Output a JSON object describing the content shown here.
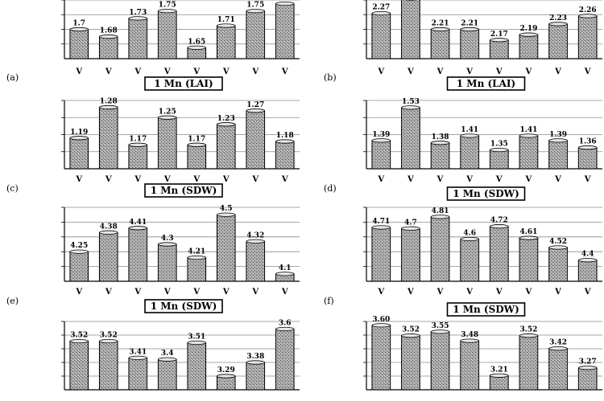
{
  "figure": {
    "bar_colors": {
      "fill": "#9a9a9a",
      "stroke": "#000000",
      "highlight": "#e6e6e6"
    },
    "title_box": {
      "border": "#000000",
      "background": "#ffffff"
    }
  },
  "chart_data": [
    {
      "panel_label": "(a)",
      "type": "bar",
      "title": "",
      "categories": [
        "V",
        "V",
        "V",
        "V",
        "V",
        "V",
        "V",
        "V"
      ],
      "values": [
        1.7,
        1.68,
        1.73,
        1.75,
        1.65,
        1.71,
        1.75,
        1.77
      ],
      "value_labels": [
        "1.7",
        "1.68",
        "1.73",
        "1.75",
        "1.65",
        "1.71",
        "1.75",
        ""
      ],
      "ylim": [
        1.62,
        1.78
      ]
    },
    {
      "panel_label": "(b)",
      "type": "bar",
      "title": "",
      "categories": [
        "V",
        "V",
        "V",
        "V",
        "V",
        "V",
        "V",
        "V"
      ],
      "values": [
        2.27,
        2.33,
        2.21,
        2.21,
        2.17,
        2.19,
        2.23,
        2.26
      ],
      "value_labels": [
        "2.27",
        "",
        "2.21",
        "2.21",
        "2.17",
        "2.19",
        "2.23",
        "2.26"
      ],
      "ylim": [
        2.1,
        2.32
      ]
    },
    {
      "panel_label": "(c)",
      "type": "bar",
      "title": "1 Mn (LAI)",
      "categories": [
        "V",
        "V",
        "V",
        "V",
        "V",
        "V",
        "V",
        "V"
      ],
      "values": [
        1.19,
        1.28,
        1.17,
        1.25,
        1.17,
        1.23,
        1.27,
        1.18
      ],
      "value_labels": [
        "1.19",
        "1.28",
        "1.17",
        "1.25",
        "1.17",
        "1.23",
        "1.27",
        "1.18"
      ],
      "ylim": [
        1.1,
        1.3
      ]
    },
    {
      "panel_label": "(d)",
      "type": "bar",
      "title": "1 Mn (LAI)",
      "categories": [
        "V",
        "V",
        "V",
        "V",
        "V",
        "V",
        "V",
        "V"
      ],
      "values": [
        1.39,
        1.53,
        1.38,
        1.41,
        1.35,
        1.41,
        1.39,
        1.36
      ],
      "value_labels": [
        "1.39",
        "1.53",
        "1.38",
        "1.41",
        "1.35",
        "1.41",
        "1.39",
        "1.36"
      ],
      "ylim": [
        1.27,
        1.56
      ]
    },
    {
      "panel_label": "(e)",
      "type": "bar",
      "title": "1 Mn (SDW)",
      "categories": [
        "V",
        "V",
        "V",
        "V",
        "V",
        "V",
        "V",
        "V"
      ],
      "values": [
        4.25,
        4.38,
        4.41,
        4.3,
        4.21,
        4.5,
        4.32,
        4.1
      ],
      "value_labels": [
        "4.25",
        "4.38",
        "4.41",
        "4.3",
        "4.21",
        "4.5",
        "4.32",
        "4.1"
      ],
      "ylim": [
        4.05,
        4.55
      ]
    },
    {
      "panel_label": "(f)",
      "type": "bar",
      "title": "1 Mn (SDW)",
      "categories": [
        "V",
        "V",
        "V",
        "V",
        "V",
        "V",
        "V",
        "V"
      ],
      "values": [
        4.71,
        4.7,
        4.81,
        4.6,
        4.72,
        4.61,
        4.52,
        4.4
      ],
      "value_labels": [
        "4.71",
        "4.7",
        "4.81",
        "4.6",
        "4.72",
        "4.61",
        "4.52",
        "4.4"
      ],
      "ylim": [
        4.2,
        4.9
      ]
    },
    {
      "panel_label": "",
      "type": "bar",
      "title": "1 Mn (SDW)",
      "categories": [
        "",
        "",
        "",
        "",
        "",
        "",
        "",
        ""
      ],
      "values": [
        3.52,
        3.52,
        3.41,
        3.4,
        3.51,
        3.29,
        3.38,
        3.6
      ],
      "value_labels": [
        "3.52",
        "3.52",
        "3.41",
        "3.4",
        "3.51",
        "3.29",
        "3.38",
        "3.6"
      ],
      "ylim": [
        3.2,
        3.65
      ]
    },
    {
      "panel_label": "",
      "type": "bar",
      "title": "1 Mn (SDW)",
      "categories": [
        "",
        "",
        "",
        "",
        "",
        "",
        "",
        ""
      ],
      "values": [
        3.6,
        3.52,
        3.55,
        3.48,
        3.21,
        3.52,
        3.42,
        3.27
      ],
      "value_labels": [
        "3.60",
        "3.52",
        "3.55",
        "3.48",
        "3.21",
        "3.52",
        "3.42",
        "3.27"
      ],
      "ylim": [
        3.1,
        3.63
      ]
    }
  ]
}
